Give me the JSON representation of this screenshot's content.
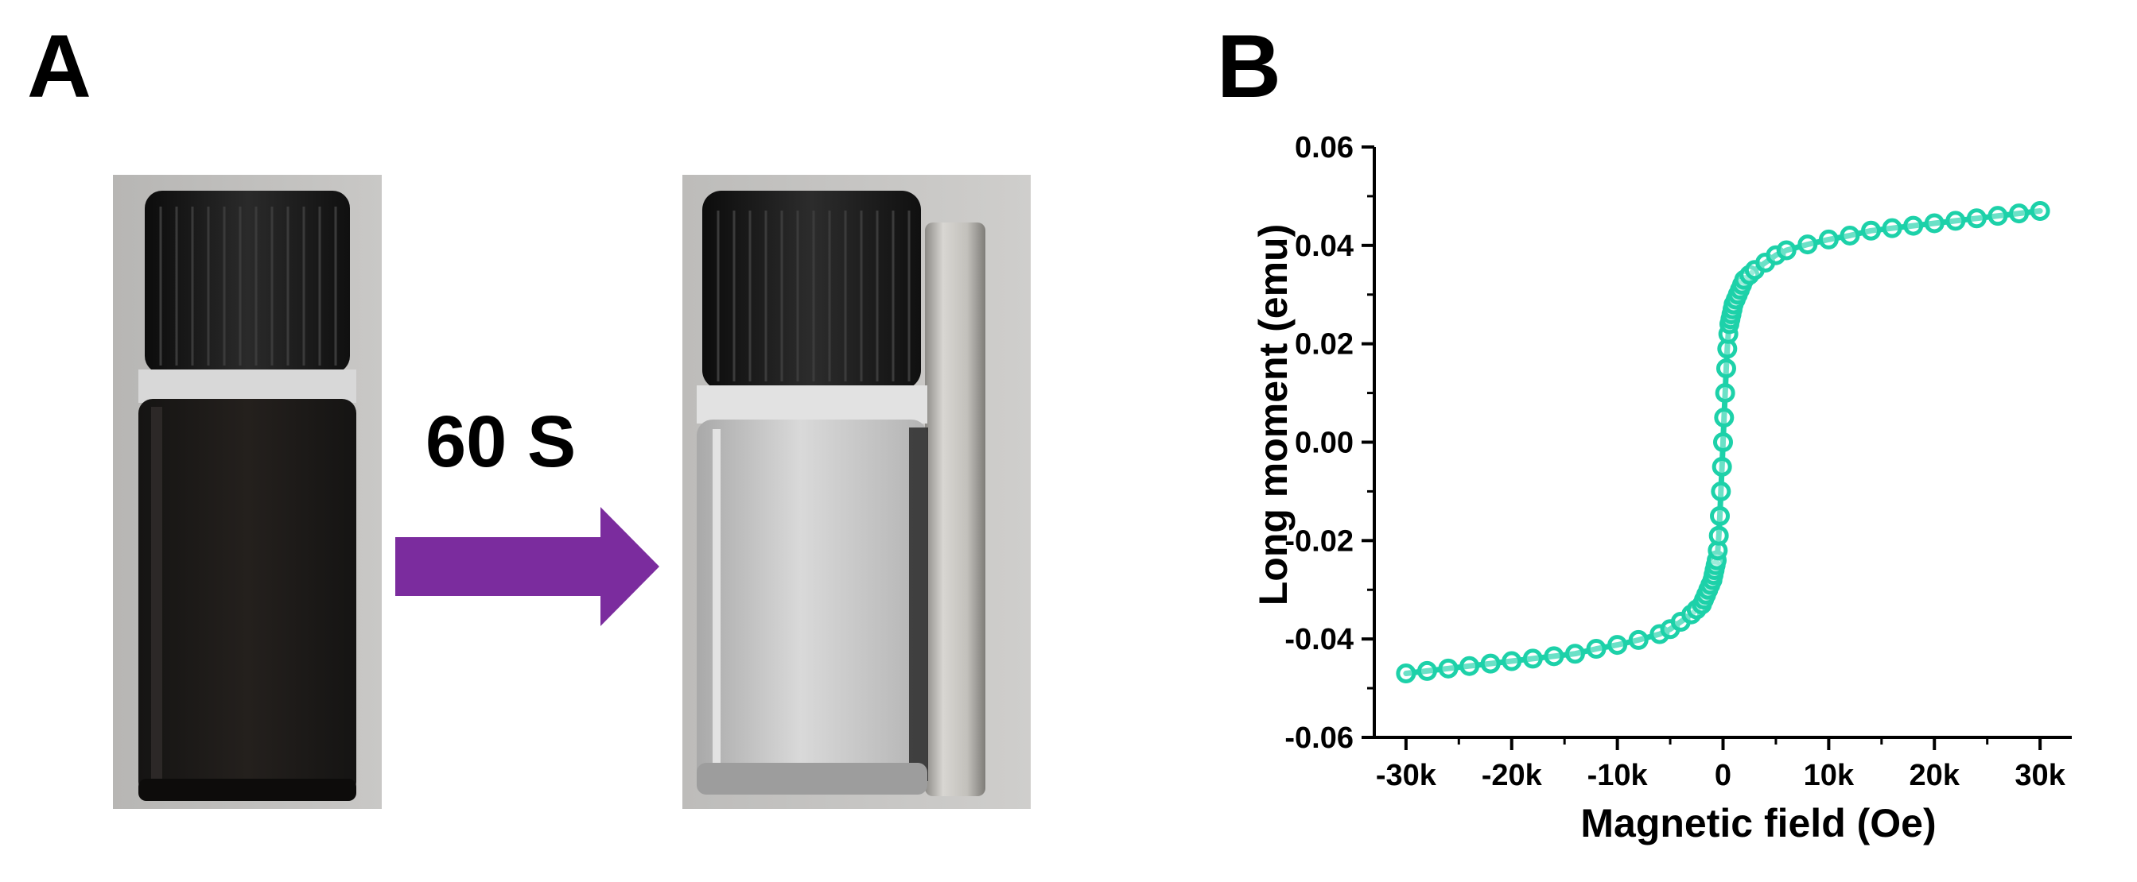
{
  "figure": {
    "panel_a_letter": "A",
    "panel_b_letter": "B",
    "time_label": "60 S",
    "arrow_color": "#7b2c9e"
  },
  "chart_data": {
    "type": "line",
    "xlabel": "Magnetic field (Oe)",
    "ylabel": "Long moment (emu)",
    "xlim": [
      -33000,
      33000
    ],
    "ylim": [
      -0.06,
      0.06
    ],
    "xticks": [
      -30000,
      -20000,
      -10000,
      0,
      10000,
      20000,
      30000
    ],
    "xtick_labels": [
      "-30k",
      "-20k",
      "-10k",
      "0",
      "10k",
      "20k",
      "30k"
    ],
    "yticks": [
      -0.06,
      -0.04,
      -0.02,
      0.0,
      0.02,
      0.04,
      0.06
    ],
    "ytick_labels": [
      "-0.06",
      "-0.04",
      "-0.02",
      "0.00",
      "0.02",
      "0.04",
      "0.06"
    ],
    "grid": false,
    "series_color": "#1dd1a9",
    "series": [
      {
        "x": [
          -30000,
          -28000,
          -26000,
          -24000,
          -22000,
          -20000,
          -18000,
          -16000,
          -14000,
          -12000,
          -10000,
          -8000,
          -6000,
          -5000,
          -4000,
          -3000,
          -2500,
          -2000,
          -1800,
          -1600,
          -1400,
          -1200,
          -1000,
          -900,
          -800,
          -700,
          -600,
          -500,
          -400,
          -300,
          -200,
          -100,
          0,
          100,
          200,
          300,
          400,
          500,
          600,
          700,
          800,
          900,
          1000,
          1200,
          1400,
          1600,
          1800,
          2000,
          2500,
          3000,
          4000,
          5000,
          6000,
          8000,
          10000,
          12000,
          14000,
          16000,
          18000,
          20000,
          22000,
          24000,
          26000,
          28000,
          30000
        ],
        "y": [
          -0.047,
          -0.0465,
          -0.046,
          -0.0455,
          -0.045,
          -0.0445,
          -0.044,
          -0.0435,
          -0.043,
          -0.042,
          -0.0412,
          -0.0402,
          -0.039,
          -0.038,
          -0.0365,
          -0.035,
          -0.034,
          -0.033,
          -0.032,
          -0.031,
          -0.03,
          -0.029,
          -0.028,
          -0.027,
          -0.026,
          -0.025,
          -0.024,
          -0.022,
          -0.019,
          -0.015,
          -0.01,
          -0.005,
          0.0,
          0.005,
          0.01,
          0.015,
          0.019,
          0.022,
          0.024,
          0.025,
          0.026,
          0.027,
          0.028,
          0.029,
          0.03,
          0.031,
          0.032,
          0.033,
          0.034,
          0.035,
          0.0365,
          0.038,
          0.039,
          0.0402,
          0.0412,
          0.042,
          0.043,
          0.0435,
          0.044,
          0.0445,
          0.045,
          0.0455,
          0.046,
          0.0465,
          0.047
        ]
      }
    ]
  }
}
